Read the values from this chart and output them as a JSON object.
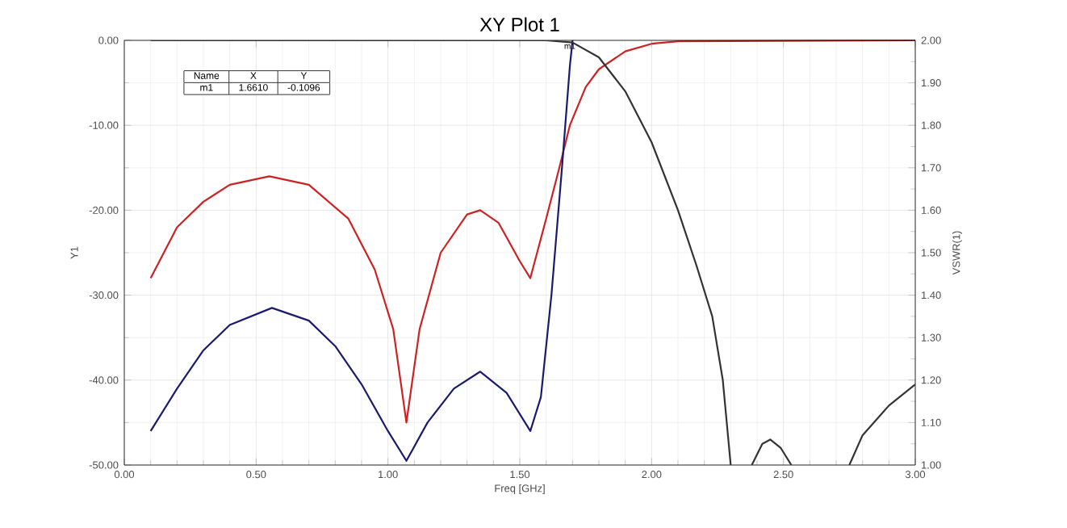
{
  "chart_data": {
    "type": "line",
    "title": "XY Plot 1",
    "xlabel": "Freq [GHz]",
    "ylabel": "Y1",
    "y2label": "VSWR(1)",
    "xlim": [
      0,
      3
    ],
    "xticks": [
      {
        "value": 0,
        "label": "0.00"
      },
      {
        "value": 0.5,
        "label": "0.50"
      },
      {
        "value": 1,
        "label": "1.00"
      },
      {
        "value": 1.5,
        "label": "1.50"
      },
      {
        "value": 2,
        "label": "2.00"
      },
      {
        "value": 2.5,
        "label": "2.50"
      },
      {
        "value": 3,
        "label": "3.00"
      }
    ],
    "ylim": [
      -50,
      0
    ],
    "yticks": [
      {
        "value": -50,
        "label": "-50.00"
      },
      {
        "value": -40,
        "label": "-40.00"
      },
      {
        "value": -30,
        "label": "-30.00"
      },
      {
        "value": -20,
        "label": "-20.00"
      },
      {
        "value": -10,
        "label": "-10.00"
      },
      {
        "value": 0,
        "label": "0.00"
      }
    ],
    "y2lim": [
      1,
      2
    ],
    "y2ticks": [
      {
        "value": 1,
        "label": "1.00"
      },
      {
        "value": 1.1,
        "label": "1.10"
      },
      {
        "value": 1.2,
        "label": "1.20"
      },
      {
        "value": 1.3,
        "label": "1.30"
      },
      {
        "value": 1.4,
        "label": "1.40"
      },
      {
        "value": 1.5,
        "label": "1.50"
      },
      {
        "value": 1.6,
        "label": "1.60"
      },
      {
        "value": 1.7,
        "label": "1.70"
      },
      {
        "value": 1.8,
        "label": "1.80"
      },
      {
        "value": 1.9,
        "label": "1.90"
      },
      {
        "value": 2,
        "label": "2.00"
      }
    ],
    "grid": true,
    "series": [
      {
        "color": "#cc2222",
        "x": [
          0.1,
          0.2,
          0.3,
          0.4,
          0.55,
          0.7,
          0.85,
          0.95,
          1.02,
          1.07,
          1.12,
          1.2,
          1.3,
          1.35,
          1.42,
          1.5,
          1.54,
          1.6,
          1.65,
          1.69,
          1.75,
          1.8,
          1.9,
          2.0,
          2.1,
          3.0
        ],
        "values": [
          -28,
          -22,
          -19,
          -17,
          -16,
          -17,
          -21,
          -27,
          -34,
          -45,
          -34,
          -25,
          -20.5,
          -20,
          -21.5,
          -26,
          -28,
          -21,
          -15,
          -10,
          -5.5,
          -3.4,
          -1.3,
          -0.4,
          -0.1,
          0
        ]
      },
      {
        "color": "#1a1a6e",
        "x": [
          0.1,
          0.2,
          0.3,
          0.4,
          0.56,
          0.7,
          0.8,
          0.9,
          1.0,
          1.07,
          1.15,
          1.25,
          1.35,
          1.45,
          1.54,
          1.58,
          1.62,
          1.66,
          1.69,
          1.7
        ],
        "values": [
          -46,
          -41,
          -36.5,
          -33.5,
          -31.5,
          -33,
          -36,
          -40.5,
          -46,
          -49.5,
          -45,
          -41,
          -39,
          -41.5,
          -46,
          -42,
          -30,
          -15,
          -3,
          0
        ]
      },
      {
        "color": "#333333",
        "axis": "y2",
        "x": [
          0.1,
          1.6,
          1.7,
          1.8,
          1.9,
          2.0,
          2.1,
          2.17,
          2.23,
          2.27,
          2.3,
          2.34,
          2.38,
          2.42,
          2.45,
          2.49,
          2.53,
          2.64,
          2.75,
          2.8,
          2.9,
          3.0
        ],
        "values": [
          2.0,
          2.0,
          1.995,
          1.96,
          1.88,
          1.76,
          1.6,
          1.47,
          1.35,
          1.2,
          1.0,
          null,
          1.0,
          1.05,
          1.06,
          1.04,
          1.0,
          null,
          1.0,
          1.07,
          1.14,
          1.19
        ]
      }
    ],
    "annotations": [
      "Name",
      "X",
      "Y",
      "m1",
      "1.6610",
      "-0.1096",
      {
        "text": "m1",
        "x": 1.661,
        "y": -0.1096
      }
    ]
  }
}
